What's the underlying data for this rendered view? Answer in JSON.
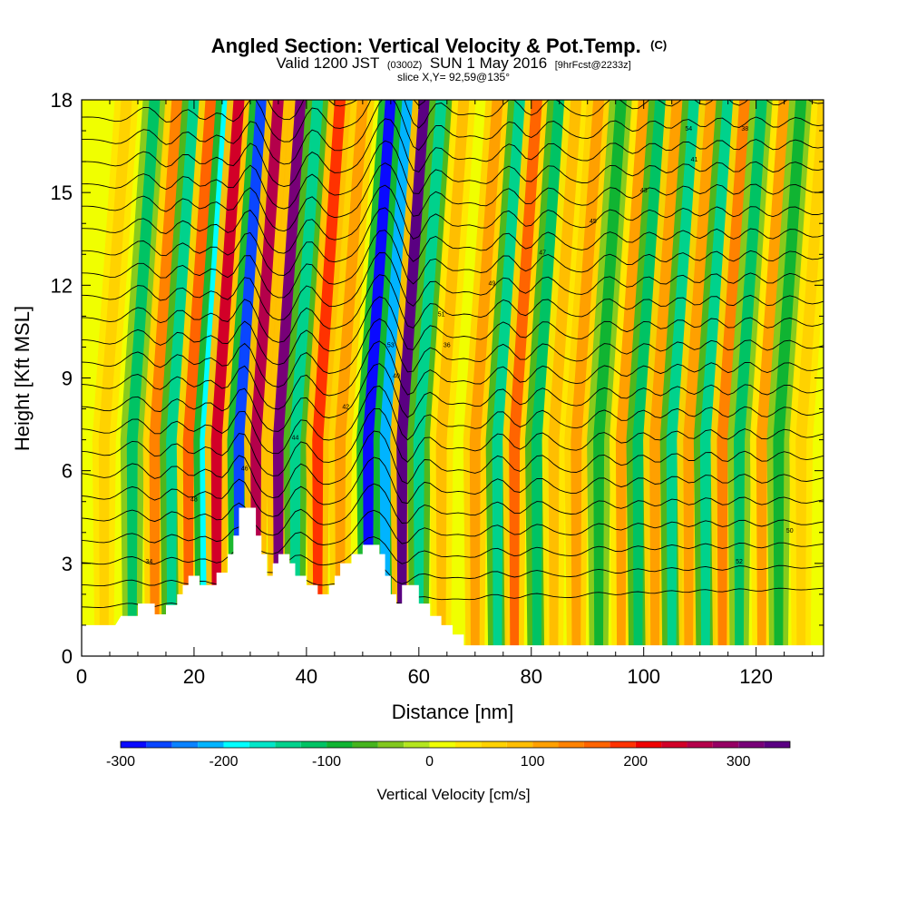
{
  "title": {
    "main": "Angled Section: Vertical Velocity & Pot.Temp.",
    "units_tag": "(C)",
    "valid_prefix": "Valid 1200 JST",
    "utc": "(0300Z)",
    "valid_date": "SUN 1 May 2016",
    "forecast": "[9hrFcst@2233z]",
    "slice": "slice X,Y= 92,59@135°"
  },
  "chart_data": {
    "type": "heatmap",
    "xlabel": "Distance [nm]",
    "ylabel": "Height [Kft MSL]",
    "xlim": [
      0,
      132
    ],
    "ylim": [
      0,
      18
    ],
    "xticks": [
      0,
      20,
      40,
      60,
      80,
      100,
      120
    ],
    "yticks": [
      0,
      3,
      6,
      9,
      12,
      15,
      18
    ],
    "colorbar": {
      "label": "Vertical Velocity [cm/s]",
      "range": [
        -300,
        350
      ],
      "step": 25,
      "tick_values": [
        -300,
        -200,
        -100,
        0,
        100,
        200,
        300
      ],
      "colors": [
        "#0a0aff",
        "#0a46ff",
        "#0a82ff",
        "#00b4ff",
        "#00ffff",
        "#00e6c8",
        "#00d28c",
        "#00c364",
        "#10b432",
        "#46b41e",
        "#82c81e",
        "#b4e61e",
        "#f0ff00",
        "#ffe600",
        "#ffd200",
        "#ffbe00",
        "#ffa000",
        "#ff8200",
        "#ff6400",
        "#ff3200",
        "#f00000",
        "#d20028",
        "#b4004b",
        "#960064",
        "#780078",
        "#5a0082"
      ]
    },
    "terrain_kft": [
      [
        0,
        1.0
      ],
      [
        6,
        1.0
      ],
      [
        7,
        1.3
      ],
      [
        10,
        1.3
      ],
      [
        10,
        1.7
      ],
      [
        13,
        1.7
      ],
      [
        13,
        1.35
      ],
      [
        15,
        1.35
      ],
      [
        15,
        1.65
      ],
      [
        17,
        1.65
      ],
      [
        17,
        2.0
      ],
      [
        18,
        2.0
      ],
      [
        18,
        2.3
      ],
      [
        19,
        2.3
      ],
      [
        19,
        2.6
      ],
      [
        21,
        2.6
      ],
      [
        21,
        2.3
      ],
      [
        24,
        2.3
      ],
      [
        24,
        2.7
      ],
      [
        26,
        2.7
      ],
      [
        26,
        3.3
      ],
      [
        27,
        3.3
      ],
      [
        27,
        3.9
      ],
      [
        28,
        3.9
      ],
      [
        28,
        4.8
      ],
      [
        31,
        4.8
      ],
      [
        31,
        3.9
      ],
      [
        32,
        3.9
      ],
      [
        32,
        3.3
      ],
      [
        33,
        3.3
      ],
      [
        33,
        2.6
      ],
      [
        34,
        2.6
      ],
      [
        34,
        3.0
      ],
      [
        35,
        3.0
      ],
      [
        35,
        3.3
      ],
      [
        37,
        3.3
      ],
      [
        37,
        3.0
      ],
      [
        38,
        3.0
      ],
      [
        38,
        2.6
      ],
      [
        40,
        2.6
      ],
      [
        40,
        2.3
      ],
      [
        42,
        2.3
      ],
      [
        42,
        2.0
      ],
      [
        44,
        2.0
      ],
      [
        44,
        2.3
      ],
      [
        45,
        2.3
      ],
      [
        45,
        2.6
      ],
      [
        46,
        2.6
      ],
      [
        46,
        3.0
      ],
      [
        48,
        3.0
      ],
      [
        48,
        3.3
      ],
      [
        50,
        3.3
      ],
      [
        50,
        3.6
      ],
      [
        53,
        3.6
      ],
      [
        53,
        3.3
      ],
      [
        54,
        3.3
      ],
      [
        54,
        2.6
      ],
      [
        55,
        2.6
      ],
      [
        55,
        2.0
      ],
      [
        56,
        2.0
      ],
      [
        56,
        1.7
      ],
      [
        57,
        1.7
      ],
      [
        57,
        2.3
      ],
      [
        60,
        2.3
      ],
      [
        60,
        1.7
      ],
      [
        62,
        1.7
      ],
      [
        62,
        1.3
      ],
      [
        64,
        1.3
      ],
      [
        64,
        1.0
      ],
      [
        66,
        1.0
      ],
      [
        66,
        0.7
      ],
      [
        68,
        0.7
      ],
      [
        68,
        0.35
      ],
      [
        132,
        0.35
      ]
    ],
    "wave_columns_nm": [
      [
        4,
        60
      ],
      [
        9,
        -110
      ],
      [
        13,
        140
      ],
      [
        16,
        -150
      ],
      [
        19,
        160
      ],
      [
        22,
        -190
      ],
      [
        24,
        230
      ],
      [
        28,
        -260
      ],
      [
        31,
        250
      ],
      [
        35,
        300
      ],
      [
        38,
        -150
      ],
      [
        42,
        180
      ],
      [
        46,
        120
      ],
      [
        51,
        -300
      ],
      [
        54,
        -220
      ],
      [
        57,
        330
      ],
      [
        60,
        -150
      ],
      [
        64,
        90
      ],
      [
        70,
        120
      ],
      [
        74,
        -140
      ],
      [
        77,
        160
      ],
      [
        81,
        -120
      ],
      [
        84,
        80
      ],
      [
        88,
        120
      ],
      [
        92,
        -90
      ],
      [
        96,
        110
      ],
      [
        99,
        -120
      ],
      [
        102,
        120
      ],
      [
        105,
        -130
      ],
      [
        108,
        120
      ],
      [
        111,
        -140
      ],
      [
        114,
        130
      ],
      [
        117,
        -110
      ],
      [
        121,
        100
      ],
      [
        124,
        -80
      ],
      [
        128,
        60
      ]
    ],
    "theta_contours": {
      "spacing_kft": 0.72,
      "first_kft": 1.6,
      "count": 24,
      "labels": [
        "34",
        "36",
        "38",
        "40",
        "41",
        "42",
        "43",
        "44",
        "45",
        "46",
        "47",
        "48",
        "49",
        "50",
        "51",
        "52",
        "53",
        "54"
      ]
    },
    "grid": false,
    "legend": "none"
  }
}
